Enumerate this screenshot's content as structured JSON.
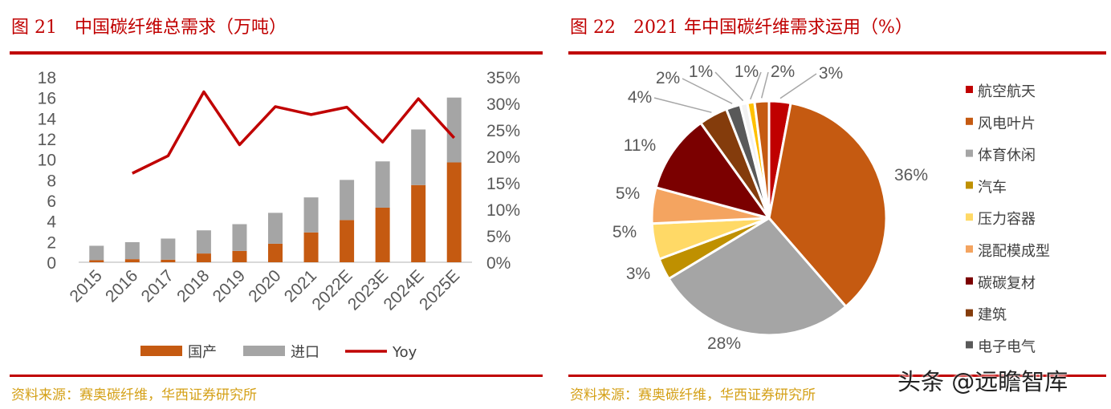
{
  "left": {
    "title": "图 21　中国碳纤维总需求（万吨）",
    "source": "资料来源：赛奥碳纤维，华西证券研究所"
  },
  "right": {
    "title": "图 22　2021 年中国碳纤维需求运用（%）",
    "source": "资料来源：赛奥碳纤维，华西证券研究所"
  },
  "watermark": "头条 @远瞻智库",
  "colors": {
    "accent": "#c00000",
    "domestic": "#c55a11",
    "import": "#a5a5a5",
    "yoy": "#c00000"
  },
  "chart_data": [
    {
      "type": "bar",
      "stacked": true,
      "categories": [
        "2015",
        "2016",
        "2017",
        "2018",
        "2019",
        "2020",
        "2021",
        "2022E",
        "2023E",
        "2024E",
        "2025E"
      ],
      "y_ticks": [
        "0",
        "2",
        "4",
        "6",
        "8",
        "10",
        "12",
        "14",
        "16",
        "18"
      ],
      "y2_ticks": [
        "0%",
        "5%",
        "10%",
        "15%",
        "20%",
        "25%",
        "30%",
        "35%"
      ],
      "ylim": [
        0,
        18
      ],
      "y2lim": [
        0,
        35
      ],
      "legend_position": "bottom",
      "series": [
        {
          "name": "国产",
          "type": "bar",
          "color": "#c55a11",
          "values": [
            0.2,
            0.3,
            0.25,
            0.85,
            1.1,
            1.8,
            2.9,
            4.1,
            5.3,
            7.5,
            9.7
          ]
        },
        {
          "name": "进口",
          "type": "bar",
          "color": "#a5a5a5",
          "values": [
            1.4,
            1.65,
            2.05,
            2.25,
            2.6,
            3.0,
            3.4,
            3.9,
            4.5,
            5.4,
            6.3
          ]
        },
        {
          "name": "Yoy",
          "type": "line",
          "axis": "right",
          "color": "#c00000",
          "values": [
            null,
            16.8,
            20.1,
            32.2,
            22.2,
            29.4,
            27.9,
            29.3,
            22.7,
            30.9,
            23.5
          ]
        }
      ]
    },
    {
      "type": "pie",
      "legend_position": "right",
      "slices": [
        {
          "label": "航空航天",
          "value": 3,
          "text": "3%",
          "color": "#c00000"
        },
        {
          "label": "风电叶片",
          "value": 36,
          "text": "36%",
          "color": "#c55a11"
        },
        {
          "label": "体育休闲",
          "value": 28,
          "text": "28%",
          "color": "#a5a5a5"
        },
        {
          "label": "汽车",
          "value": 3,
          "text": "3%",
          "color": "#bf9000"
        },
        {
          "label": "压力容器",
          "value": 5,
          "text": "5%",
          "color": "#ffd966"
        },
        {
          "label": "混配模成型",
          "value": 5,
          "text": "5%",
          "color": "#f4a460"
        },
        {
          "label": "碳碳复材",
          "value": 11,
          "text": "11%",
          "color": "#7b0000"
        },
        {
          "label": "建筑",
          "value": 4,
          "text": "4%",
          "color": "#843c0c"
        },
        {
          "label": "电子电气",
          "value": 2,
          "text": "2%",
          "color": "#595959"
        },
        {
          "value": 1,
          "text": "1%",
          "color": "#f2f2f2"
        },
        {
          "value": 1,
          "text": "1%",
          "color": "#ffc000"
        },
        {
          "value": 2,
          "text": "2%",
          "color": "#c55a11"
        }
      ]
    }
  ]
}
